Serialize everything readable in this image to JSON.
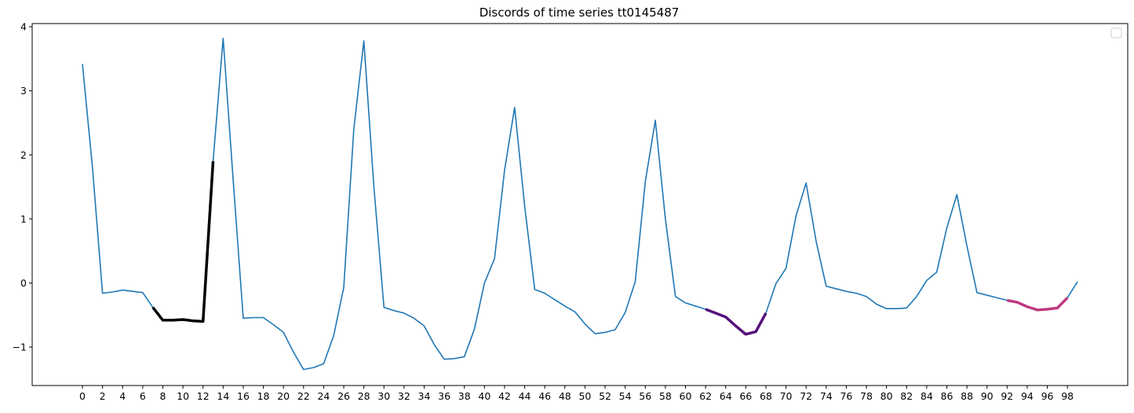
{
  "chart_data": {
    "type": "line",
    "title": "Discords of time series tt0145487",
    "xlabel": "",
    "ylabel": "",
    "xlim": [
      -5,
      104
    ],
    "ylim": [
      -1.6,
      4.05
    ],
    "x_ticks": [
      0,
      2,
      4,
      6,
      8,
      10,
      12,
      14,
      16,
      18,
      20,
      22,
      24,
      26,
      28,
      30,
      32,
      34,
      36,
      38,
      40,
      42,
      44,
      46,
      48,
      50,
      52,
      54,
      56,
      58,
      60,
      62,
      64,
      66,
      68,
      70,
      72,
      74,
      76,
      78,
      80,
      82,
      84,
      86,
      88,
      90,
      92,
      94,
      96,
      98
    ],
    "y_ticks": [
      -1,
      0,
      1,
      2,
      3,
      4
    ],
    "grid": false,
    "legend": {
      "placement": "top-right",
      "entries": []
    },
    "series": [
      {
        "color": "#1f77b4",
        "width": 1.6,
        "x": [
          0,
          1,
          2,
          3,
          4,
          5,
          6,
          7,
          8,
          9,
          10,
          11,
          12,
          13,
          14,
          15,
          16,
          17,
          18,
          19,
          20,
          21,
          22,
          23,
          24,
          25,
          26,
          27,
          28,
          29,
          30,
          31,
          32,
          33,
          34,
          35,
          36,
          37,
          38,
          39,
          40,
          41,
          42,
          43,
          44,
          45,
          46,
          47,
          48,
          49,
          50,
          51,
          52,
          53,
          54,
          55,
          56,
          57,
          58,
          59,
          60,
          61,
          62,
          63,
          64,
          65,
          66,
          67,
          68,
          69,
          70,
          71,
          72,
          73,
          74,
          75,
          76,
          77,
          78,
          79,
          80,
          81,
          82,
          83,
          84,
          85,
          86,
          87,
          88,
          89,
          90,
          91,
          92,
          93,
          94,
          95,
          96,
          97,
          98,
          99
        ],
        "y": [
          3.42,
          1.8,
          -0.16,
          -0.14,
          -0.11,
          -0.13,
          -0.15,
          -0.38,
          -0.58,
          -0.58,
          -0.57,
          -0.59,
          -0.6,
          1.9,
          3.82,
          1.6,
          -0.55,
          -0.54,
          -0.54,
          -0.65,
          -0.77,
          -1.08,
          -1.35,
          -1.32,
          -1.26,
          -0.82,
          -0.07,
          2.4,
          3.78,
          1.5,
          -0.38,
          -0.43,
          -0.47,
          -0.55,
          -0.67,
          -0.96,
          -1.19,
          -1.18,
          -1.15,
          -0.72,
          0.0,
          0.38,
          1.76,
          2.74,
          1.2,
          -0.1,
          -0.16,
          -0.26,
          -0.36,
          -0.45,
          -0.64,
          -0.79,
          -0.77,
          -0.73,
          -0.46,
          0.02,
          1.58,
          2.54,
          1.0,
          -0.21,
          -0.31,
          -0.36,
          -0.41,
          -0.47,
          -0.53,
          -0.67,
          -0.8,
          -0.76,
          -0.47,
          -0.01,
          0.23,
          1.05,
          1.56,
          0.65,
          -0.05,
          -0.09,
          -0.13,
          -0.16,
          -0.21,
          -0.33,
          -0.4,
          -0.4,
          -0.39,
          -0.21,
          0.04,
          0.17,
          0.86,
          1.38,
          0.58,
          -0.15,
          -0.19,
          -0.23,
          -0.27,
          -0.3,
          -0.37,
          -0.42,
          -0.41,
          -0.39,
          -0.23,
          0.02
        ]
      },
      {
        "color": "#000000",
        "width": 3.5,
        "x": [
          7,
          8,
          9,
          10,
          11,
          12,
          13
        ],
        "y": [
          -0.38,
          -0.58,
          -0.58,
          -0.57,
          -0.59,
          -0.6,
          1.9
        ]
      },
      {
        "color": "#55117a",
        "width": 3.5,
        "x": [
          62,
          63,
          64,
          65,
          66,
          67,
          68
        ],
        "y": [
          -0.41,
          -0.47,
          -0.53,
          -0.67,
          -0.8,
          -0.76,
          -0.47
        ]
      },
      {
        "color": "#bf3a7f",
        "width": 3.5,
        "x": [
          92,
          93,
          94,
          95,
          96,
          97,
          98
        ],
        "y": [
          -0.27,
          -0.3,
          -0.37,
          -0.42,
          -0.41,
          -0.39,
          -0.23
        ]
      }
    ]
  }
}
